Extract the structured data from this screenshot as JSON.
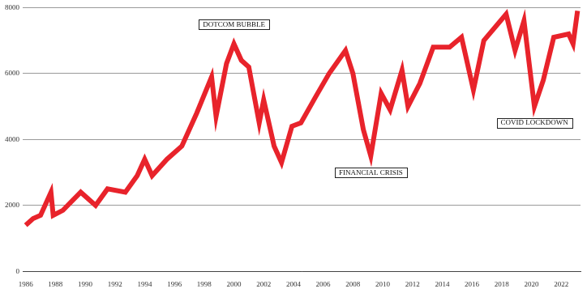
{
  "chart_data": {
    "type": "line",
    "x": [
      1986.0,
      1986.5,
      1987.0,
      1987.7,
      1987.85,
      1988.5,
      1989.7,
      1990.7,
      1991.5,
      1992.7,
      1993.5,
      1994.0,
      1994.5,
      1995.5,
      1996.5,
      1997.5,
      1998.5,
      1998.8,
      1999.5,
      2000.0,
      2000.5,
      2001.0,
      2001.7,
      2002.0,
      2002.7,
      2003.2,
      2003.9,
      2004.5,
      2005.5,
      2006.4,
      2007.5,
      2008.0,
      2008.7,
      2009.2,
      2009.9,
      2010.5,
      2011.3,
      2011.7,
      2012.5,
      2013.4,
      2014.5,
      2015.3,
      2016.1,
      2016.8,
      2018.3,
      2018.9,
      2019.5,
      2020.2,
      2020.8,
      2021.5,
      2022.5,
      2022.8,
      2023.1
    ],
    "values": [
      1400,
      1600,
      1700,
      2400,
      1700,
      1850,
      2400,
      2000,
      2500,
      2400,
      2900,
      3400,
      2900,
      3400,
      3800,
      4800,
      5900,
      4700,
      6300,
      6900,
      6400,
      6200,
      4500,
      5200,
      3800,
      3300,
      4400,
      4500,
      5300,
      6000,
      6700,
      6000,
      4300,
      3500,
      5400,
      4900,
      6100,
      5000,
      5700,
      6800,
      6800,
      7100,
      5500,
      7000,
      7800,
      6700,
      7600,
      5000,
      5800,
      7100,
      7200,
      6900,
      7900
    ],
    "color": "#e8232b",
    "xlim": [
      1985.8,
      2023.3
    ],
    "xticks": [
      1986,
      1988,
      1990,
      1992,
      1994,
      1996,
      1998,
      2000,
      2002,
      2004,
      2006,
      2008,
      2010,
      2012,
      2014,
      2016,
      2018,
      2020,
      2022
    ],
    "ylim": [
      0,
      8000
    ],
    "yticks": [
      0,
      2000,
      4000,
      6000,
      8000
    ],
    "grid": true,
    "annotations": [
      {
        "text": "DOTCOM BUBBLE",
        "x": 2000.0,
        "y": 6900
      },
      {
        "text": "FINANCIAL CRISIS",
        "x": 2009.2,
        "y": 3500
      },
      {
        "text": "COVID LOCKDOWN",
        "x": 2020.2,
        "y": 5000
      }
    ]
  }
}
